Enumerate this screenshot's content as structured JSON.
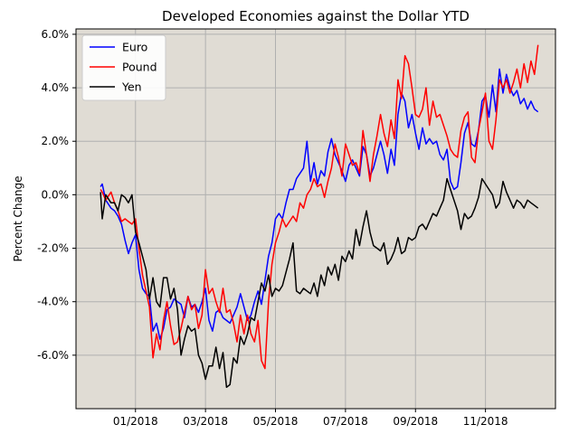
{
  "chart_data": {
    "type": "line",
    "title": "Developed Economies against the Dollar YTD",
    "xlabel": "",
    "ylabel": "Percent Change",
    "x_tick_labels": [
      "01/2018",
      "03/2018",
      "05/2018",
      "07/2018",
      "09/2018",
      "11/2018"
    ],
    "y_tick_labels": [
      "-6.0%",
      "-4.0%",
      "-2.0%",
      "0.0%",
      "2.0%",
      "4.0%",
      "6.0%"
    ],
    "y_ticks": [
      -6,
      -4,
      -2,
      0,
      2,
      4,
      6
    ],
    "x_ticks": [
      0,
      2,
      4,
      6,
      8,
      10
    ],
    "xlim": [
      -1.7,
      12.0
    ],
    "ylim": [
      -8.0,
      6.2
    ],
    "grid": true,
    "background_color": "#e0dcd4",
    "legend_position": "upper-left",
    "series": [
      {
        "name": "Euro",
        "color": "#0000ff",
        "x": [
          -1.0,
          -0.95,
          -0.85,
          -0.7,
          -0.6,
          -0.5,
          -0.4,
          -0.3,
          -0.2,
          -0.1,
          0.0,
          0.1,
          0.2,
          0.3,
          0.4,
          0.5,
          0.6,
          0.7,
          0.8,
          0.9,
          1.0,
          1.1,
          1.2,
          1.3,
          1.4,
          1.5,
          1.6,
          1.7,
          1.8,
          1.9,
          2.0,
          2.1,
          2.2,
          2.3,
          2.4,
          2.5,
          2.6,
          2.7,
          2.8,
          2.9,
          3.0,
          3.1,
          3.2,
          3.3,
          3.4,
          3.5,
          3.6,
          3.7,
          3.8,
          3.9,
          4.0,
          4.1,
          4.2,
          4.3,
          4.4,
          4.5,
          4.6,
          4.7,
          4.8,
          4.9,
          5.0,
          5.1,
          5.2,
          5.3,
          5.4,
          5.5,
          5.6,
          5.7,
          5.8,
          5.9,
          6.0,
          6.1,
          6.2,
          6.3,
          6.4,
          6.5,
          6.6,
          6.7,
          6.8,
          6.9,
          7.0,
          7.1,
          7.2,
          7.3,
          7.4,
          7.5,
          7.6,
          7.7,
          7.8,
          7.9,
          8.0,
          8.1,
          8.2,
          8.3,
          8.4,
          8.5,
          8.6,
          8.7,
          8.8,
          8.9,
          9.0,
          9.1,
          9.2,
          9.3,
          9.4,
          9.5,
          9.6,
          9.7,
          9.8,
          9.9,
          10.0,
          10.1,
          10.2,
          10.3,
          10.4,
          10.5,
          10.6,
          10.7,
          10.8,
          10.9,
          11.0,
          11.1,
          11.2,
          11.3,
          11.4,
          11.5
        ],
        "y": [
          0.3,
          0.4,
          -0.2,
          -0.5,
          -0.6,
          -0.8,
          -1.1,
          -1.7,
          -2.2,
          -1.8,
          -1.5,
          -2.8,
          -3.5,
          -3.7,
          -3.8,
          -5.1,
          -4.8,
          -5.4,
          -5.0,
          -4.3,
          -4.2,
          -3.9,
          -4.0,
          -4.1,
          -4.6,
          -3.8,
          -4.2,
          -4.1,
          -4.4,
          -4.0,
          -3.5,
          -4.7,
          -5.1,
          -4.4,
          -4.3,
          -4.6,
          -4.7,
          -4.8,
          -4.5,
          -4.2,
          -3.7,
          -4.2,
          -4.7,
          -4.5,
          -4.0,
          -3.6,
          -4.1,
          -3.2,
          -2.3,
          -1.8,
          -0.9,
          -0.7,
          -0.9,
          -0.3,
          0.2,
          0.2,
          0.6,
          0.8,
          1.0,
          2.0,
          0.5,
          1.2,
          0.4,
          0.9,
          0.7,
          1.6,
          2.1,
          1.5,
          1.2,
          0.9,
          0.5,
          1.1,
          1.3,
          1.0,
          0.7,
          1.8,
          1.5,
          0.7,
          1.0,
          1.5,
          2.0,
          1.5,
          0.8,
          1.7,
          1.1,
          3.0,
          3.8,
          3.5,
          2.5,
          3.0,
          2.3,
          1.7,
          2.5,
          1.9,
          2.1,
          1.9,
          2.0,
          1.5,
          1.3,
          1.7,
          0.5,
          0.2,
          0.3,
          1.2,
          2.3,
          2.7,
          1.9,
          1.8,
          2.4,
          3.5,
          3.7,
          2.9,
          4.1,
          3.1,
          4.7,
          3.8,
          4.5,
          4.0,
          3.7,
          3.9,
          3.4,
          3.6,
          3.2,
          3.5,
          3.2,
          3.1
        ]
      },
      {
        "name": "Pound",
        "color": "#ff0000",
        "x": [
          -1.0,
          -0.95,
          -0.85,
          -0.7,
          -0.6,
          -0.5,
          -0.4,
          -0.3,
          -0.2,
          -0.1,
          0.0,
          0.1,
          0.2,
          0.3,
          0.4,
          0.5,
          0.6,
          0.7,
          0.8,
          0.9,
          1.0,
          1.1,
          1.2,
          1.3,
          1.4,
          1.5,
          1.6,
          1.7,
          1.8,
          1.9,
          2.0,
          2.1,
          2.2,
          2.3,
          2.4,
          2.5,
          2.6,
          2.7,
          2.8,
          2.9,
          3.0,
          3.1,
          3.2,
          3.3,
          3.4,
          3.5,
          3.6,
          3.7,
          3.8,
          3.9,
          4.0,
          4.1,
          4.2,
          4.3,
          4.4,
          4.5,
          4.6,
          4.7,
          4.8,
          4.9,
          5.0,
          5.1,
          5.2,
          5.3,
          5.4,
          5.5,
          5.6,
          5.7,
          5.8,
          5.9,
          6.0,
          6.1,
          6.2,
          6.3,
          6.4,
          6.5,
          6.6,
          6.7,
          6.8,
          6.9,
          7.0,
          7.1,
          7.2,
          7.3,
          7.4,
          7.5,
          7.6,
          7.7,
          7.8,
          7.9,
          8.0,
          8.1,
          8.2,
          8.3,
          8.4,
          8.5,
          8.6,
          8.7,
          8.8,
          8.9,
          9.0,
          9.1,
          9.2,
          9.3,
          9.4,
          9.5,
          9.6,
          9.7,
          9.8,
          9.9,
          10.0,
          10.1,
          10.2,
          10.3,
          10.4,
          10.5,
          10.6,
          10.7,
          10.8,
          10.9,
          11.0,
          11.1,
          11.2,
          11.3,
          11.4,
          11.5
        ],
        "y": [
          0.2,
          0.1,
          -0.2,
          0.1,
          -0.3,
          -0.6,
          -1.0,
          -0.9,
          -1.0,
          -1.1,
          -0.9,
          -2.0,
          -3.0,
          -3.6,
          -4.2,
          -6.1,
          -5.2,
          -5.8,
          -4.7,
          -4.0,
          -4.9,
          -5.6,
          -5.5,
          -5.0,
          -4.4,
          -3.8,
          -4.3,
          -4.1,
          -5.0,
          -4.5,
          -2.8,
          -3.7,
          -3.5,
          -4.0,
          -4.4,
          -3.5,
          -4.4,
          -4.3,
          -4.8,
          -5.5,
          -4.5,
          -5.2,
          -4.5,
          -5.2,
          -5.5,
          -4.7,
          -6.2,
          -6.5,
          -4.0,
          -2.6,
          -1.8,
          -1.4,
          -0.9,
          -1.2,
          -1.0,
          -0.8,
          -1.0,
          -0.3,
          -0.5,
          0.0,
          0.2,
          0.6,
          0.3,
          0.4,
          -0.1,
          0.5,
          1.0,
          1.9,
          1.4,
          0.7,
          1.9,
          1.5,
          1.1,
          1.2,
          0.8,
          2.4,
          1.5,
          0.5,
          1.5,
          2.2,
          3.0,
          2.3,
          1.8,
          2.8,
          2.1,
          4.3,
          3.6,
          5.2,
          4.9,
          4.0,
          3.0,
          2.9,
          3.2,
          4.0,
          2.6,
          3.5,
          2.9,
          3.0,
          2.6,
          2.2,
          1.7,
          1.5,
          1.4,
          2.4,
          2.9,
          3.1,
          1.4,
          1.2,
          2.4,
          3.1,
          3.8,
          2.0,
          1.7,
          2.8,
          4.3,
          4.0,
          4.3,
          3.8,
          4.2,
          4.7,
          4.0,
          4.9,
          4.2,
          5.0,
          4.5,
          5.6
        ]
      },
      {
        "name": "Yen",
        "color": "#000000",
        "x": [
          -1.0,
          -0.95,
          -0.85,
          -0.7,
          -0.6,
          -0.5,
          -0.4,
          -0.3,
          -0.2,
          -0.1,
          0.0,
          0.1,
          0.2,
          0.3,
          0.4,
          0.5,
          0.6,
          0.7,
          0.8,
          0.9,
          1.0,
          1.1,
          1.2,
          1.3,
          1.4,
          1.5,
          1.6,
          1.7,
          1.8,
          1.9,
          2.0,
          2.1,
          2.2,
          2.3,
          2.4,
          2.5,
          2.6,
          2.7,
          2.8,
          2.9,
          3.0,
          3.1,
          3.2,
          3.3,
          3.4,
          3.5,
          3.6,
          3.7,
          3.8,
          3.9,
          4.0,
          4.1,
          4.2,
          4.3,
          4.4,
          4.5,
          4.6,
          4.7,
          4.8,
          4.9,
          5.0,
          5.1,
          5.2,
          5.3,
          5.4,
          5.5,
          5.6,
          5.7,
          5.8,
          5.9,
          6.0,
          6.1,
          6.2,
          6.3,
          6.4,
          6.5,
          6.6,
          6.7,
          6.8,
          6.9,
          7.0,
          7.1,
          7.2,
          7.3,
          7.4,
          7.5,
          7.6,
          7.7,
          7.8,
          7.9,
          8.0,
          8.1,
          8.2,
          8.3,
          8.4,
          8.5,
          8.6,
          8.7,
          8.8,
          8.9,
          9.0,
          9.1,
          9.2,
          9.3,
          9.4,
          9.5,
          9.6,
          9.7,
          9.8,
          9.9,
          10.0,
          10.1,
          10.2,
          10.3,
          10.4,
          10.5,
          10.6,
          10.7,
          10.8,
          10.9,
          11.0,
          11.1,
          11.2,
          11.3,
          11.4,
          11.5
        ],
        "y": [
          0.1,
          -0.9,
          0.0,
          -0.3,
          -0.3,
          -0.6,
          0.0,
          -0.1,
          -0.3,
          0.0,
          -1.4,
          -1.8,
          -2.3,
          -2.8,
          -3.9,
          -3.1,
          -4.0,
          -4.2,
          -3.1,
          -3.1,
          -3.9,
          -3.5,
          -4.3,
          -6.0,
          -5.4,
          -4.9,
          -5.1,
          -5.0,
          -6.0,
          -6.3,
          -6.9,
          -6.4,
          -6.4,
          -5.7,
          -6.5,
          -5.9,
          -7.2,
          -7.1,
          -6.1,
          -6.3,
          -5.3,
          -5.6,
          -5.2,
          -4.6,
          -4.7,
          -4.0,
          -3.3,
          -3.6,
          -3.0,
          -3.8,
          -3.5,
          -3.6,
          -3.4,
          -2.9,
          -2.4,
          -1.8,
          -3.6,
          -3.7,
          -3.5,
          -3.6,
          -3.7,
          -3.3,
          -3.8,
          -3.0,
          -3.4,
          -2.7,
          -3.0,
          -2.6,
          -3.2,
          -2.3,
          -2.5,
          -2.1,
          -2.4,
          -1.3,
          -1.9,
          -1.2,
          -0.6,
          -1.4,
          -1.9,
          -2.0,
          -2.1,
          -1.8,
          -2.6,
          -2.4,
          -2.1,
          -1.6,
          -2.2,
          -2.1,
          -1.6,
          -1.7,
          -1.6,
          -1.2,
          -1.1,
          -1.3,
          -1.0,
          -0.7,
          -0.8,
          -0.5,
          -0.2,
          0.6,
          0.2,
          -0.2,
          -0.6,
          -1.3,
          -0.7,
          -0.9,
          -0.8,
          -0.5,
          -0.1,
          0.6,
          0.4,
          0.2,
          0.0,
          -0.5,
          -0.3,
          0.5,
          0.1,
          -0.2,
          -0.5,
          -0.2,
          -0.3,
          -0.5,
          -0.2,
          -0.3,
          -0.4,
          -0.5
        ]
      }
    ]
  }
}
